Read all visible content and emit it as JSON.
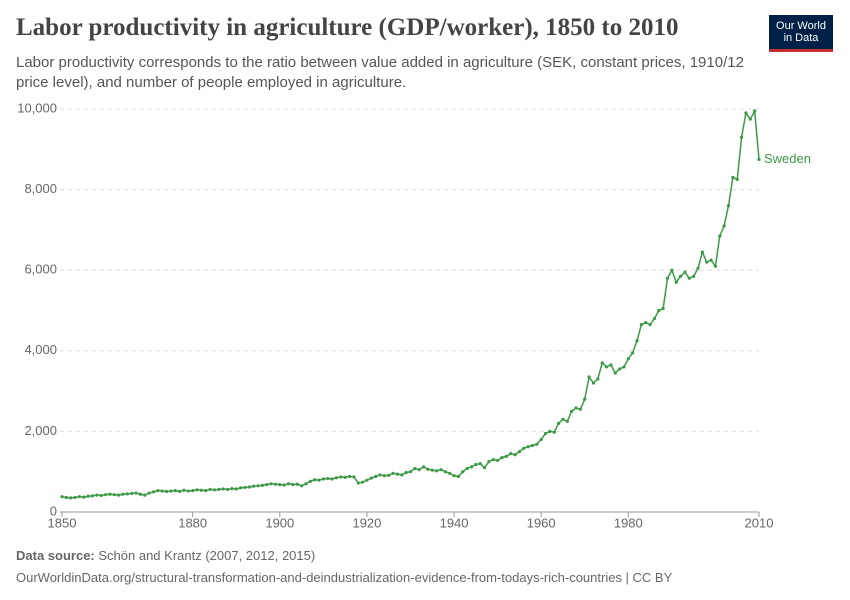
{
  "chart_data": {
    "type": "line",
    "title": "Labor productivity in agriculture (GDP/worker), 1850 to 2010",
    "subtitle": "Labor productivity corresponds to the ratio between value added in agriculture (SEK, constant prices, 1910/12 price level), and number of people employed in agriculture.",
    "logo": [
      "Our World",
      "in Data"
    ],
    "source_label": "Data source:",
    "source": "Schön and Krantz (2007, 2012, 2015)",
    "url": "OurWorldinData.org/structural-transformation-and-deindustrialization-evidence-from-todays-rich-countries | CC BY",
    "xlim": [
      1850,
      2010
    ],
    "xticks": [
      1850,
      1880,
      1900,
      1920,
      1940,
      1960,
      1980,
      2010
    ],
    "ylim": [
      0,
      10000
    ],
    "yticks": [
      0,
      {
        "value": 2000,
        "label": "2,000"
      },
      {
        "value": 4000,
        "label": "4,000"
      },
      {
        "value": 6000,
        "label": "6,000"
      },
      {
        "value": 8000,
        "label": "8,000"
      },
      {
        "value": 10000,
        "label": "10,000"
      }
    ],
    "grid": true,
    "x": [
      1850,
      1851,
      1852,
      1853,
      1854,
      1855,
      1856,
      1857,
      1858,
      1859,
      1860,
      1861,
      1862,
      1863,
      1864,
      1865,
      1866,
      1867,
      1868,
      1869,
      1870,
      1871,
      1872,
      1873,
      1874,
      1875,
      1876,
      1877,
      1878,
      1879,
      1880,
      1881,
      1882,
      1883,
      1884,
      1885,
      1886,
      1887,
      1888,
      1889,
      1890,
      1891,
      1892,
      1893,
      1894,
      1895,
      1896,
      1897,
      1898,
      1899,
      1900,
      1901,
      1902,
      1903,
      1904,
      1905,
      1906,
      1907,
      1908,
      1909,
      1910,
      1911,
      1912,
      1913,
      1914,
      1915,
      1916,
      1917,
      1918,
      1919,
      1920,
      1921,
      1922,
      1923,
      1924,
      1925,
      1926,
      1927,
      1928,
      1929,
      1930,
      1931,
      1932,
      1933,
      1934,
      1935,
      1936,
      1937,
      1938,
      1939,
      1940,
      1941,
      1942,
      1943,
      1944,
      1945,
      1946,
      1947,
      1948,
      1949,
      1950,
      1951,
      1952,
      1953,
      1954,
      1955,
      1956,
      1957,
      1958,
      1959,
      1960,
      1961,
      1962,
      1963,
      1964,
      1965,
      1966,
      1967,
      1968,
      1969,
      1970,
      1971,
      1972,
      1973,
      1974,
      1975,
      1976,
      1977,
      1978,
      1979,
      1980,
      1981,
      1982,
      1983,
      1984,
      1985,
      1986,
      1987,
      1988,
      1989,
      1990,
      1991,
      1992,
      1993,
      1994,
      1995,
      1996,
      1997,
      1998,
      1999,
      2000,
      2001,
      2002,
      2003,
      2004,
      2005,
      2006,
      2007,
      2008,
      2009,
      2010
    ],
    "series": [
      {
        "name": "Sweden",
        "color": "#3c9a46",
        "values": [
          380,
          360,
          350,
          360,
          380,
          370,
          390,
          400,
          420,
          410,
          430,
          440,
          430,
          420,
          440,
          450,
          460,
          470,
          440,
          420,
          470,
          500,
          530,
          520,
          510,
          520,
          530,
          510,
          540,
          520,
          530,
          550,
          540,
          530,
          560,
          550,
          560,
          570,
          560,
          580,
          570,
          600,
          610,
          620,
          640,
          650,
          660,
          680,
          700,
          690,
          680,
          670,
          700,
          680,
          690,
          650,
          700,
          760,
          800,
          790,
          820,
          830,
          820,
          850,
          870,
          860,
          880,
          870,
          720,
          740,
          790,
          840,
          880,
          920,
          900,
          910,
          960,
          940,
          920,
          980,
          1000,
          1080,
          1050,
          1120,
          1060,
          1040,
          1020,
          1050,
          1000,
          960,
          900,
          880,
          1000,
          1080,
          1120,
          1180,
          1200,
          1100,
          1250,
          1300,
          1280,
          1350,
          1380,
          1450,
          1420,
          1500,
          1580,
          1620,
          1650,
          1680,
          1800,
          1950,
          2000,
          1980,
          2200,
          2300,
          2250,
          2500,
          2580,
          2550,
          2800,
          3350,
          3200,
          3300,
          3700,
          3600,
          3650,
          3450,
          3550,
          3600,
          3800,
          3950,
          4250,
          4650,
          4700,
          4650,
          4800,
          5000,
          5050,
          5800,
          6000,
          5700,
          5850,
          5950,
          5800,
          5850,
          6050,
          6450,
          6200,
          6250,
          6100,
          6850,
          7100,
          7600,
          8300,
          8250,
          9300,
          9900,
          9750,
          9950,
          8750
        ]
      }
    ]
  }
}
